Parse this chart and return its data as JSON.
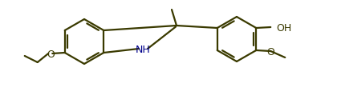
{
  "bg_color": "#ffffff",
  "bond_color": "#3a3a00",
  "nh_color": "#00008b",
  "lw": 1.6,
  "fs": 9.0,
  "fig_w": 4.2,
  "fig_h": 1.15,
  "dpi": 100,
  "xlim": [
    0,
    42
  ],
  "ylim": [
    0,
    11.5
  ]
}
